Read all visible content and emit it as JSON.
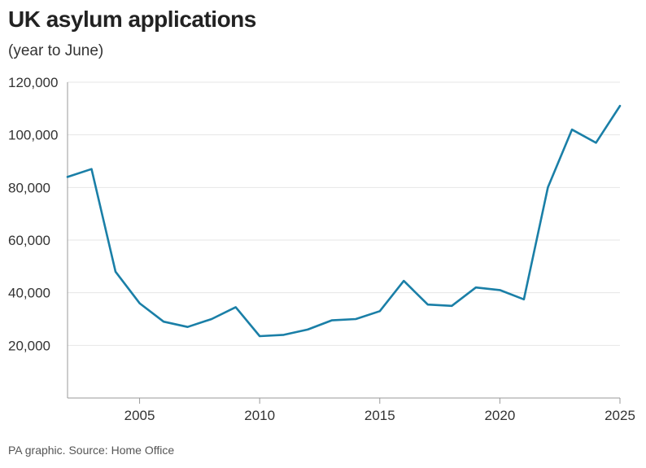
{
  "title": "UK asylum applications",
  "subtitle": "(year to June)",
  "source": "PA graphic. Source: Home Office",
  "chart_data": {
    "type": "line",
    "title": "UK asylum applications",
    "subtitle": "(year to June)",
    "xlabel": "",
    "ylabel": "",
    "x": [
      2002,
      2003,
      2004,
      2005,
      2006,
      2007,
      2008,
      2009,
      2010,
      2011,
      2012,
      2013,
      2014,
      2015,
      2016,
      2017,
      2018,
      2019,
      2020,
      2021,
      2022,
      2023,
      2024,
      2025
    ],
    "series": [
      {
        "values": [
          84000,
          87000,
          48000,
          36000,
          29000,
          27000,
          30000,
          34500,
          23500,
          24000,
          26000,
          29500,
          30000,
          33000,
          44500,
          35500,
          35000,
          42000,
          41000,
          37500,
          80000,
          102000,
          97000,
          111000
        ]
      }
    ],
    "xlim": [
      2002,
      2025
    ],
    "ylim": [
      0,
      120000
    ],
    "xticks": [
      2005,
      2010,
      2015,
      2020,
      2025
    ],
    "xtick_labels": [
      "2005",
      "2010",
      "2015",
      "2020",
      "2025"
    ],
    "yticks": [
      20000,
      40000,
      60000,
      80000,
      100000,
      120000
    ],
    "ytick_labels": [
      "20,000",
      "40,000",
      "60,000",
      "80,000",
      "100,000",
      "120,000"
    ],
    "grid": true,
    "legend": "none",
    "colors": {
      "line": "#1a7fa7",
      "grid": "#e6e6e6",
      "axis": "#999999"
    }
  }
}
